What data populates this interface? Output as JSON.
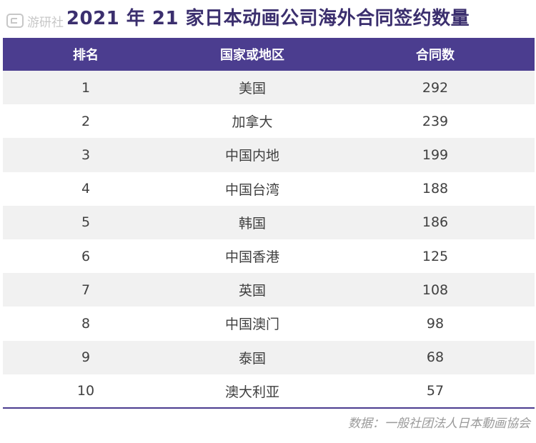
{
  "title": "2021 年 21 家日本动画公司海外合同签约数量",
  "watermark": "游研社",
  "source": "数据：一般社团法人日本動画協会",
  "chart_data": {
    "type": "table",
    "title": "2021 年 21 家日本动画公司海外合同签约数量",
    "columns": [
      "排名",
      "国家或地区",
      "合同数"
    ],
    "rows": [
      {
        "rank": "1",
        "region": "美国",
        "count": 292
      },
      {
        "rank": "2",
        "region": "加拿大",
        "count": 239
      },
      {
        "rank": "3",
        "region": "中国内地",
        "count": 199
      },
      {
        "rank": "4",
        "region": "中国台湾",
        "count": 188
      },
      {
        "rank": "5",
        "region": "韩国",
        "count": 186
      },
      {
        "rank": "6",
        "region": "中国香港",
        "count": 125
      },
      {
        "rank": "7",
        "region": "英国",
        "count": 108
      },
      {
        "rank": "8",
        "region": "中国澳门",
        "count": 98
      },
      {
        "rank": "9",
        "region": "泰国",
        "count": 68
      },
      {
        "rank": "10",
        "region": "澳大利亚",
        "count": 57
      }
    ]
  },
  "colors": {
    "header_bg": "#4b3d8f",
    "title": "#3b2f6e",
    "stripe": "#f1f1f1"
  }
}
